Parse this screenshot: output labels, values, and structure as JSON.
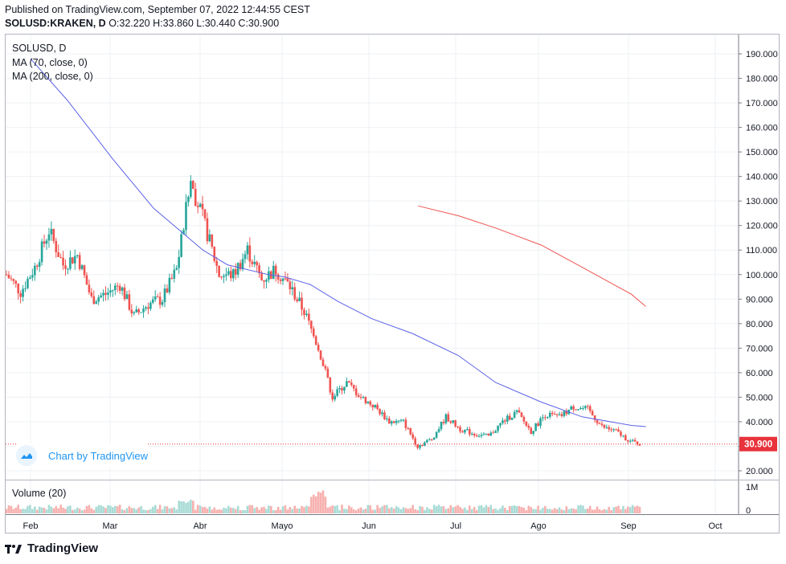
{
  "header": {
    "published": "Published on TradingView.com, September 07, 2022 12:44:55 CEST",
    "symbol": "SOLUSD:KRAKEN, D",
    "ohlc": "O:32.220 H:33.860 L:30.440 C:30.900"
  },
  "legend": {
    "symbol": "SOLUSD, D",
    "ma70": "MA (70, close, 0)",
    "ma200": "MA (200, close, 0)",
    "volume": "Volume (20)"
  },
  "watermark": {
    "text": "Chart by TradingView",
    "icon": "tradingview-cloud-icon"
  },
  "footer": {
    "brand": "TradingView",
    "icon": "tv-logo-icon"
  },
  "colors": {
    "up": "#26a69a",
    "down": "#ef5350",
    "ma70": "#5b62e6",
    "ma200": "#ef5350",
    "last_price": "#e8323c",
    "vol_up": "#a8dbd5",
    "vol_down": "#f7b0ae"
  },
  "chart_data": {
    "type": "candlestick",
    "symbol": "SOLUSD",
    "interval": "D",
    "price_axis": {
      "ticks": [
        "190.000",
        "180.000",
        "170.000",
        "160.000",
        "150.000",
        "140.000",
        "130.000",
        "120.000",
        "110.000",
        "100.000",
        "90.000",
        "80.000",
        "70.000",
        "60.000",
        "50.000",
        "40.000",
        "30.000",
        "20.000"
      ],
      "min": 14,
      "max": 197
    },
    "last_price": {
      "value": 30.9,
      "label": "30.900"
    },
    "time_axis": {
      "labels": [
        "Feb",
        "Mar",
        "Abr",
        "Mayo",
        "Jun",
        "Jul",
        "Ago",
        "Sep",
        "Oct"
      ]
    },
    "volume_axis": {
      "labels": [
        "1M",
        "0"
      ]
    },
    "series": [
      {
        "name": "MA (70, close, 0)",
        "points": [
          [
            "Feb 0",
            188
          ],
          [
            "Feb 13",
            171
          ],
          [
            "Mar 1",
            147
          ],
          [
            "Mar 15",
            127
          ],
          [
            "Abr 1",
            110
          ],
          [
            "Abr 10",
            104
          ],
          [
            "Abr 25",
            100
          ],
          [
            "Mayo 1",
            99
          ],
          [
            "Mayo 10",
            96
          ],
          [
            "Mayo 20",
            89
          ],
          [
            "Jun 1",
            82
          ],
          [
            "Jun 15",
            76
          ],
          [
            "Jul 1",
            67
          ],
          [
            "Jul 15",
            56
          ],
          [
            "Ago 1",
            48
          ],
          [
            "Ago 15",
            42
          ],
          [
            "Sep 1",
            38.5
          ],
          [
            "Sep 6",
            38
          ]
        ]
      },
      {
        "name": "MA (200, close, 0)",
        "points": [
          [
            "Jun 17",
            128
          ],
          [
            "Jul 1",
            124
          ],
          [
            "Jul 15",
            119
          ],
          [
            "Ago 1",
            112
          ],
          [
            "Ago 15",
            103
          ],
          [
            "Sep 1",
            92
          ],
          [
            "Sep 6",
            87
          ]
        ]
      }
    ]
  }
}
